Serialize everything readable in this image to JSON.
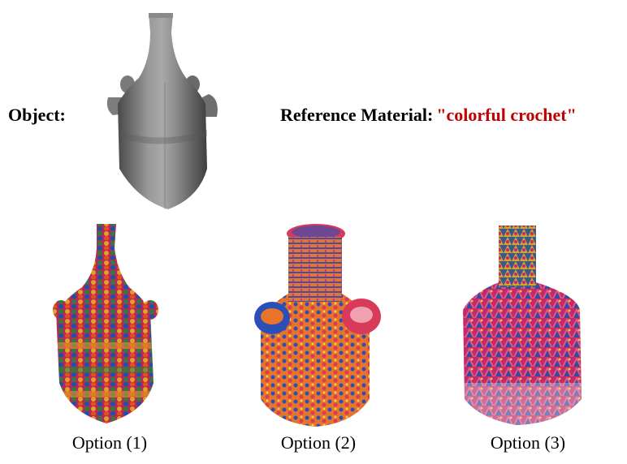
{
  "object_label": "Object:",
  "reference_label": "Reference Material:",
  "reference_material": "\"colorful crochet\"",
  "options": [
    {
      "caption": "Option (1)"
    },
    {
      "caption": "Option (2)"
    },
    {
      "caption": "Option (3)"
    }
  ],
  "colors": {
    "material_text": "#c00000",
    "mesh_gray": "#8a8a8a"
  }
}
